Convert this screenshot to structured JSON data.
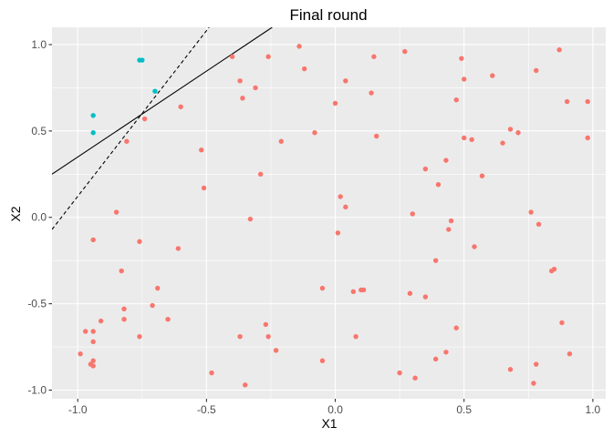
{
  "chart_data": {
    "type": "scatter",
    "title": "Final round",
    "xlabel": "X1",
    "ylabel": "X2",
    "xlim": [
      -1.1,
      1.05
    ],
    "ylim": [
      -1.05,
      1.1
    ],
    "x_ticks": [
      -1.0,
      -0.5,
      0.0,
      0.5,
      1.0
    ],
    "x_tick_labels": [
      "-1.0",
      "-0.5",
      "0.0",
      "0.5",
      "1.0"
    ],
    "y_ticks": [
      -1.0,
      -0.5,
      0.0,
      0.5,
      1.0
    ],
    "y_tick_labels": [
      "-1.0",
      "-0.5",
      "0.0",
      "0.5",
      "1.0"
    ],
    "grid": true,
    "panel_color": "#ebebeb",
    "grid_color": "#ffffff",
    "legend": "none",
    "series": [
      {
        "color": "#f8766d",
        "points": [
          [
            -0.4,
            0.93
          ],
          [
            -0.37,
            0.79
          ],
          [
            -0.36,
            0.69
          ],
          [
            -0.31,
            0.75
          ],
          [
            -0.26,
            0.93
          ],
          [
            -0.14,
            0.99
          ],
          [
            -0.12,
            0.86
          ],
          [
            -0.6,
            0.64
          ],
          [
            -0.74,
            0.57
          ],
          [
            -0.81,
            0.44
          ],
          [
            -0.21,
            0.44
          ],
          [
            -0.52,
            0.39
          ],
          [
            -0.51,
            0.17
          ],
          [
            -0.29,
            0.25
          ],
          [
            -0.08,
            0.49
          ],
          [
            0.0,
            0.66
          ],
          [
            0.04,
            0.79
          ],
          [
            0.14,
            0.72
          ],
          [
            0.15,
            0.93
          ],
          [
            0.16,
            0.47
          ],
          [
            0.27,
            0.96
          ],
          [
            0.35,
            0.28
          ],
          [
            0.4,
            0.19
          ],
          [
            0.43,
            0.33
          ],
          [
            0.47,
            0.68
          ],
          [
            0.49,
            0.92
          ],
          [
            0.5,
            0.8
          ],
          [
            0.5,
            0.46
          ],
          [
            0.53,
            0.45
          ],
          [
            0.57,
            0.24
          ],
          [
            0.61,
            0.82
          ],
          [
            0.65,
            0.43
          ],
          [
            0.68,
            0.51
          ],
          [
            0.71,
            0.49
          ],
          [
            0.78,
            0.85
          ],
          [
            0.87,
            0.97
          ],
          [
            0.9,
            0.67
          ],
          [
            0.98,
            0.67
          ],
          [
            0.98,
            0.46
          ],
          [
            -0.85,
            0.03
          ],
          [
            -0.94,
            -0.13
          ],
          [
            -0.76,
            -0.14
          ],
          [
            -0.61,
            -0.18
          ],
          [
            -0.33,
            -0.01
          ],
          [
            0.02,
            0.12
          ],
          [
            0.04,
            0.06
          ],
          [
            0.01,
            -0.09
          ],
          [
            0.3,
            0.02
          ],
          [
            0.45,
            -0.02
          ],
          [
            0.44,
            -0.07
          ],
          [
            0.54,
            -0.17
          ],
          [
            0.76,
            0.03
          ],
          [
            0.79,
            -0.04
          ],
          [
            0.39,
            -0.25
          ],
          [
            -0.83,
            -0.31
          ],
          [
            -0.69,
            -0.41
          ],
          [
            -0.71,
            -0.51
          ],
          [
            -0.82,
            -0.53
          ],
          [
            -0.82,
            -0.59
          ],
          [
            -0.65,
            -0.59
          ],
          [
            -0.91,
            -0.6
          ],
          [
            -0.97,
            -0.66
          ],
          [
            -0.94,
            -0.66
          ],
          [
            -0.76,
            -0.69
          ],
          [
            -0.94,
            -0.72
          ],
          [
            -0.99,
            -0.79
          ],
          [
            -0.94,
            -0.83
          ],
          [
            -0.95,
            -0.85
          ],
          [
            -0.94,
            -0.86
          ],
          [
            -0.48,
            -0.9
          ],
          [
            -0.37,
            -0.69
          ],
          [
            -0.35,
            -0.97
          ],
          [
            -0.27,
            -0.62
          ],
          [
            -0.26,
            -0.69
          ],
          [
            -0.23,
            -0.77
          ],
          [
            -0.05,
            -0.41
          ],
          [
            -0.05,
            -0.83
          ],
          [
            0.07,
            -0.43
          ],
          [
            0.1,
            -0.42
          ],
          [
            0.11,
            -0.42
          ],
          [
            0.08,
            -0.69
          ],
          [
            0.29,
            -0.44
          ],
          [
            0.35,
            -0.46
          ],
          [
            0.47,
            -0.64
          ],
          [
            0.43,
            -0.78
          ],
          [
            0.39,
            -0.82
          ],
          [
            0.25,
            -0.9
          ],
          [
            0.31,
            -0.93
          ],
          [
            0.68,
            -0.88
          ],
          [
            0.77,
            -0.96
          ],
          [
            0.78,
            -0.85
          ],
          [
            0.84,
            -0.31
          ],
          [
            0.85,
            -0.3
          ],
          [
            0.88,
            -0.61
          ],
          [
            0.91,
            -0.79
          ]
        ]
      },
      {
        "color": "#00bfc4",
        "points": [
          [
            -0.76,
            0.91
          ],
          [
            -0.75,
            0.91
          ],
          [
            -0.7,
            0.73
          ],
          [
            -0.94,
            0.59
          ],
          [
            -0.94,
            0.49
          ]
        ]
      }
    ],
    "lines": [
      {
        "style": "solid",
        "color": "#000000",
        "from": [
          -1.1,
          0.25
        ],
        "to": [
          -0.245,
          1.1
        ]
      },
      {
        "style": "dashed",
        "color": "#000000",
        "from": [
          -1.1,
          -0.07
        ],
        "to": [
          -0.49,
          1.1
        ]
      }
    ]
  }
}
